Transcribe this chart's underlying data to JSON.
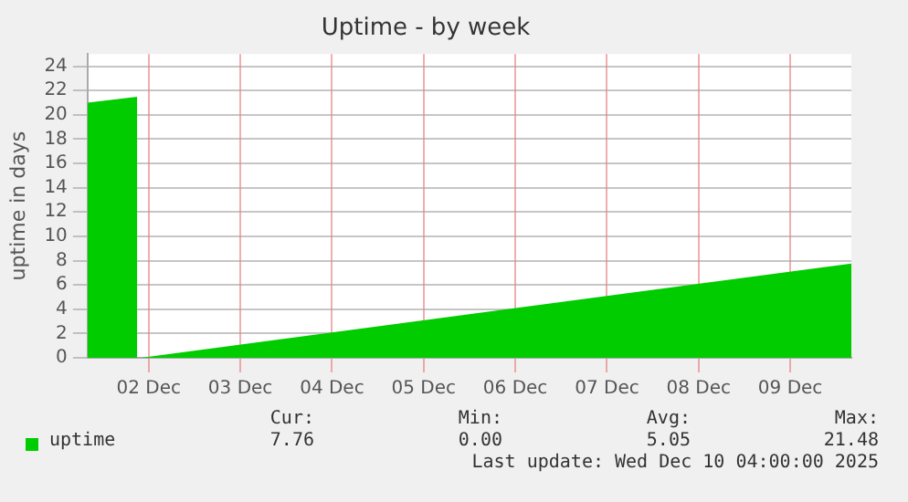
{
  "chart_data": {
    "type": "area",
    "title": "Uptime - by week",
    "ylabel": "uptime in days",
    "x": [
      "2025-12-01T20:00",
      "2025-12-02T09:00",
      "2025-12-02T09:30",
      "2025-12-02T10:00",
      "2025-12-10T04:00"
    ],
    "series": [
      {
        "name": "uptime",
        "color": "#00cc00",
        "values": [
          21.0,
          21.48,
          null,
          0,
          7.76
        ]
      }
    ],
    "xlim": [
      "2025-12-01T20:00",
      "2025-12-10T04:00"
    ],
    "xticks": [
      {
        "value": "2025-12-02T12:00",
        "label": "02 Dec"
      },
      {
        "value": "2025-12-03T12:00",
        "label": "03 Dec"
      },
      {
        "value": "2025-12-04T12:00",
        "label": "04 Dec"
      },
      {
        "value": "2025-12-05T12:00",
        "label": "05 Dec"
      },
      {
        "value": "2025-12-06T12:00",
        "label": "06 Dec"
      },
      {
        "value": "2025-12-07T12:00",
        "label": "07 Dec"
      },
      {
        "value": "2025-12-08T12:00",
        "label": "08 Dec"
      },
      {
        "value": "2025-12-09T12:00",
        "label": "09 Dec"
      }
    ],
    "ylim": [
      0,
      25
    ],
    "yticks": [
      0,
      2,
      4,
      6,
      8,
      10,
      12,
      14,
      16,
      18,
      20,
      22,
      24
    ],
    "grid": true,
    "legend": "bottom",
    "annotations": [
      "Cur:",
      "Min:",
      "Avg:",
      "Max:",
      "7.76",
      "0.00",
      "5.05",
      "21.48",
      "Last update: Wed Dec 10 04:00:00 2025"
    ]
  }
}
